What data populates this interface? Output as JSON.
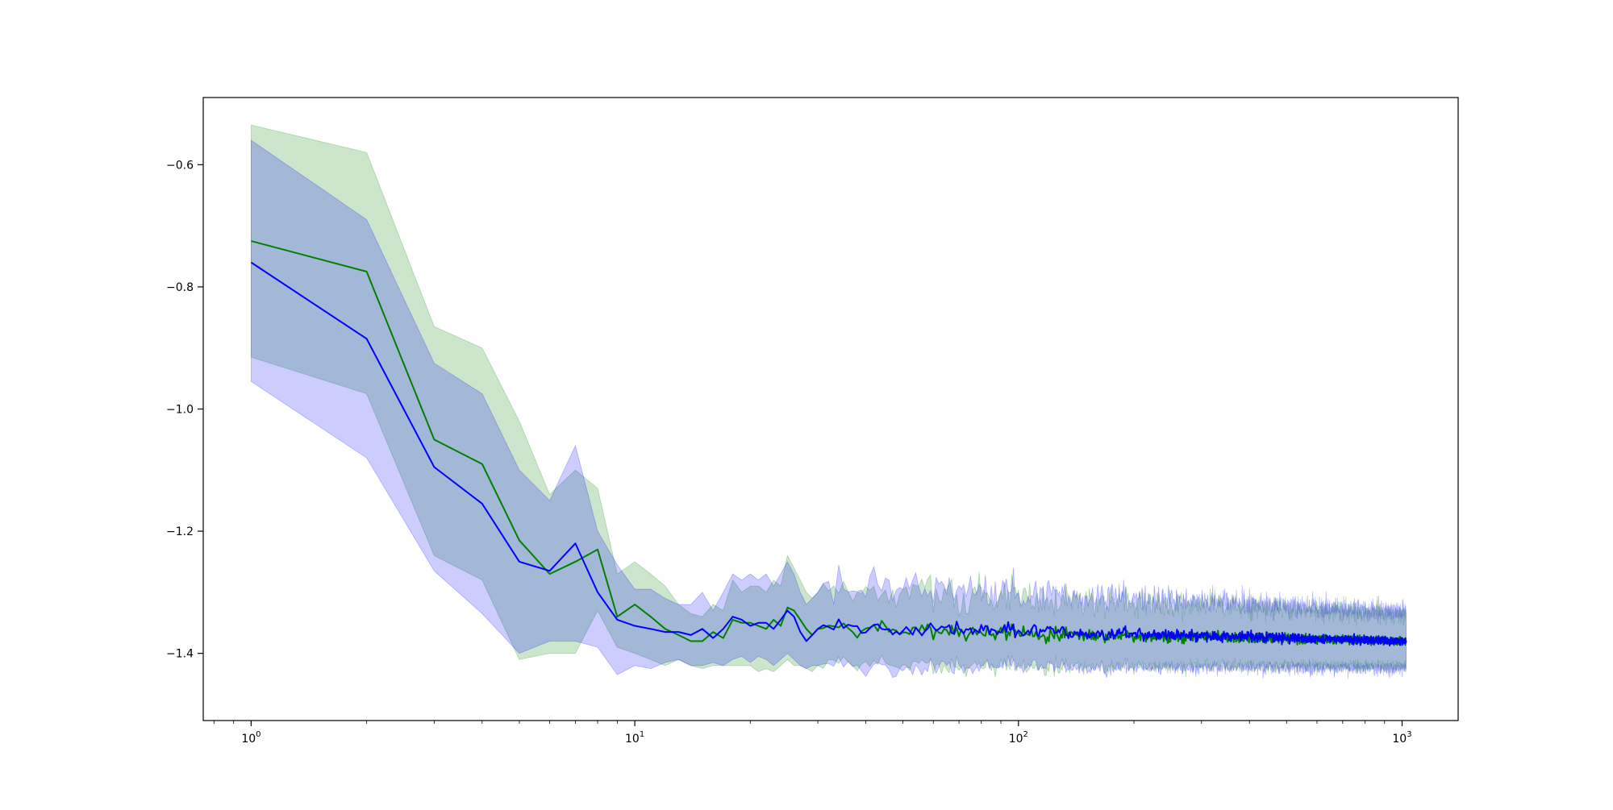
{
  "chart_data": {
    "type": "line",
    "title": "",
    "xlabel": "",
    "ylabel": "",
    "x_scale": "log",
    "xlim": [
      0.75,
      1400
    ],
    "ylim": [
      -1.51,
      -0.49
    ],
    "grid": false,
    "legend": "none",
    "x_ticks": [
      {
        "value": 1,
        "base": "10",
        "exp": "0"
      },
      {
        "value": 10,
        "base": "10",
        "exp": "1"
      },
      {
        "value": 100,
        "base": "10",
        "exp": "2"
      },
      {
        "value": 1000,
        "base": "10",
        "exp": "3"
      }
    ],
    "y_ticks": [
      {
        "value": -1.4,
        "label": "−1.4"
      },
      {
        "value": -1.2,
        "label": "−1.2"
      },
      {
        "value": -1.0,
        "label": "−1.0"
      },
      {
        "value": -0.8,
        "label": "−0.8"
      },
      {
        "value": -0.6,
        "label": "−0.6"
      }
    ],
    "x_range": [
      1,
      1024
    ],
    "series": [
      {
        "color": "#008000",
        "band_color": "#008000",
        "band_opacity": 0.2,
        "x": [
          1,
          2,
          3,
          4,
          5,
          6,
          7,
          8,
          9,
          10,
          11,
          12,
          13,
          14,
          15,
          16,
          17,
          18,
          19,
          20,
          21,
          22,
          23,
          24,
          25,
          26,
          27,
          28,
          29,
          30
        ],
        "mean": [
          -0.725,
          -0.775,
          -1.05,
          -1.09,
          -1.215,
          -1.27,
          -1.25,
          -1.23,
          -1.34,
          -1.32,
          -1.34,
          -1.36,
          -1.37,
          -1.38,
          -1.38,
          -1.365,
          -1.375,
          -1.345,
          -1.35,
          -1.35,
          -1.355,
          -1.36,
          -1.345,
          -1.355,
          -1.325,
          -1.33,
          -1.345,
          -1.36,
          -1.37,
          -1.36
        ],
        "lower": [
          -0.915,
          -0.975,
          -1.24,
          -1.28,
          -1.41,
          -1.4,
          -1.4,
          -1.33,
          -1.39,
          -1.4,
          -1.41,
          -1.42,
          -1.41,
          -1.42,
          -1.425,
          -1.42,
          -1.42,
          -1.42,
          -1.42,
          -1.42,
          -1.43,
          -1.425,
          -1.43,
          -1.42,
          -1.41,
          -1.42,
          -1.42,
          -1.425,
          -1.43,
          -1.42
        ],
        "upper": [
          -0.535,
          -0.58,
          -0.865,
          -0.9,
          -1.02,
          -1.14,
          -1.1,
          -1.13,
          -1.27,
          -1.25,
          -1.27,
          -1.29,
          -1.32,
          -1.335,
          -1.34,
          -1.32,
          -1.33,
          -1.28,
          -1.3,
          -1.29,
          -1.29,
          -1.3,
          -1.28,
          -1.29,
          -1.24,
          -1.26,
          -1.28,
          -1.3,
          -1.31,
          -1.3
        ],
        "tail_mean": -1.36,
        "tail_mean_end": -1.38,
        "tail_half_width": 0.055,
        "tail_half_width_end": 0.035
      },
      {
        "color": "#0000ff",
        "band_color": "#0000ff",
        "band_opacity": 0.2,
        "x": [
          1,
          2,
          3,
          4,
          5,
          6,
          7,
          8,
          9,
          10,
          11,
          12,
          13,
          14,
          15,
          16,
          17,
          18,
          19,
          20,
          21,
          22,
          23,
          24,
          25,
          26,
          27,
          28,
          29,
          30
        ],
        "mean": [
          -0.76,
          -0.885,
          -1.095,
          -1.155,
          -1.25,
          -1.265,
          -1.22,
          -1.3,
          -1.345,
          -1.355,
          -1.36,
          -1.365,
          -1.365,
          -1.37,
          -1.36,
          -1.375,
          -1.36,
          -1.34,
          -1.345,
          -1.355,
          -1.35,
          -1.35,
          -1.36,
          -1.345,
          -1.33,
          -1.34,
          -1.365,
          -1.38,
          -1.37,
          -1.36
        ],
        "lower": [
          -0.955,
          -1.08,
          -1.265,
          -1.335,
          -1.4,
          -1.38,
          -1.38,
          -1.39,
          -1.435,
          -1.42,
          -1.425,
          -1.415,
          -1.41,
          -1.42,
          -1.42,
          -1.415,
          -1.42,
          -1.41,
          -1.405,
          -1.415,
          -1.405,
          -1.41,
          -1.42,
          -1.41,
          -1.4,
          -1.41,
          -1.42,
          -1.425,
          -1.42,
          -1.42
        ],
        "upper": [
          -0.56,
          -0.69,
          -0.925,
          -0.975,
          -1.1,
          -1.15,
          -1.06,
          -1.2,
          -1.255,
          -1.295,
          -1.295,
          -1.31,
          -1.32,
          -1.32,
          -1.3,
          -1.33,
          -1.3,
          -1.27,
          -1.28,
          -1.27,
          -1.28,
          -1.27,
          -1.29,
          -1.27,
          -1.25,
          -1.27,
          -1.3,
          -1.32,
          -1.31,
          -1.3
        ],
        "tail_mean": -1.355,
        "tail_mean_end": -1.38,
        "tail_half_width": 0.06,
        "tail_half_width_end": 0.04
      }
    ]
  }
}
